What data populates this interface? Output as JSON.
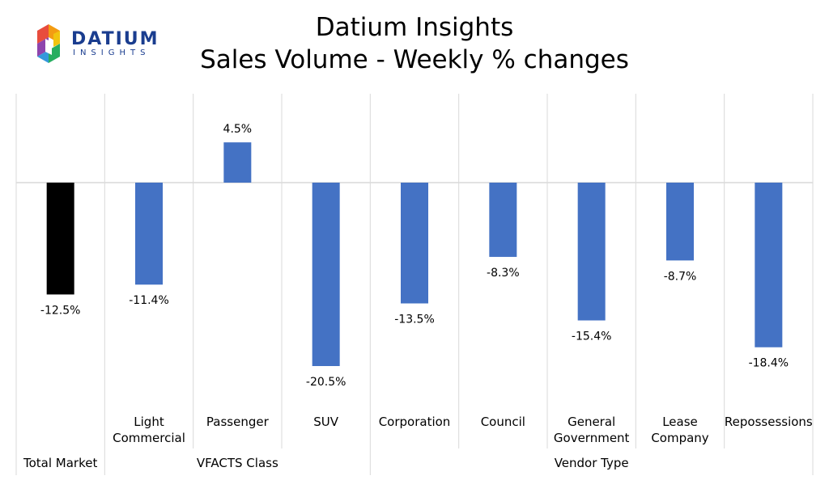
{
  "logo": {
    "brand": "DATIUM",
    "tagline": "INSIGHTS",
    "colors": [
      "#e84c3d",
      "#f39c12",
      "#f1c40f",
      "#27ae60",
      "#3498db",
      "#8e44ad",
      "#1a3d8f"
    ]
  },
  "chart_data": {
    "type": "bar",
    "title": "Datium Insights",
    "subtitle": "Sales Volume - Weekly % changes",
    "categories": [
      "Total Market",
      "Light\nCommercial",
      "Passenger",
      "SUV",
      "Corporation",
      "Council",
      "General\nGovernment",
      "Lease\nCompany",
      "Repossessions"
    ],
    "values": [
      -12.5,
      -11.4,
      4.5,
      -20.5,
      -13.5,
      -8.3,
      -15.4,
      -8.7,
      -18.4
    ],
    "data_labels": [
      "-12.5%",
      "-11.4%",
      "4.5%",
      "-20.5%",
      "-13.5%",
      "-8.3%",
      "-15.4%",
      "-8.7%",
      "-18.4%"
    ],
    "groups": [
      {
        "label": "Total Market",
        "categories": [
          0
        ]
      },
      {
        "label": "VFACTS Class",
        "categories": [
          1,
          2,
          3
        ]
      },
      {
        "label": "Vendor Type",
        "categories": [
          4,
          5,
          6,
          7,
          8
        ]
      }
    ],
    "ylim": [
      -25,
      10
    ],
    "colors": {
      "Total Market": "#000000",
      "default": "#4472c4"
    },
    "grid": true,
    "legend": "none"
  }
}
